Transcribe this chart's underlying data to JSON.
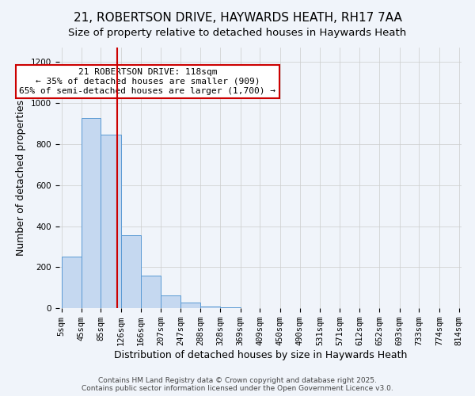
{
  "title_line1": "21, ROBERTSON DRIVE, HAYWARDS HEATH, RH17 7AA",
  "title_line2": "Size of property relative to detached houses in Haywards Heath",
  "xlabel": "Distribution of detached houses by size in Haywards Heath",
  "ylabel": "Number of detached properties",
  "bar_color": "#c5d8f0",
  "bar_edge_color": "#5a9ad4",
  "bin_edges": [
    5,
    45,
    85,
    126,
    166,
    207,
    247,
    288,
    328,
    369,
    409,
    450,
    490,
    531,
    571,
    612,
    652,
    693,
    733,
    774,
    814
  ],
  "bin_labels": [
    "5sqm",
    "45sqm",
    "85sqm",
    "126sqm",
    "166sqm",
    "207sqm",
    "247sqm",
    "288sqm",
    "328sqm",
    "369sqm",
    "409sqm",
    "450sqm",
    "490sqm",
    "531sqm",
    "571sqm",
    "612sqm",
    "652sqm",
    "693sqm",
    "733sqm",
    "774sqm",
    "814sqm"
  ],
  "bar_heights": [
    250,
    925,
    845,
    355,
    160,
    62,
    28,
    10,
    5,
    2,
    1,
    0,
    0,
    0,
    0,
    0,
    0,
    0,
    0,
    0
  ],
  "vline_x": 118,
  "vline_color": "#cc0000",
  "ylim": [
    0,
    1270
  ],
  "yticks": [
    0,
    200,
    400,
    600,
    800,
    1000,
    1200
  ],
  "annotation_title": "21 ROBERTSON DRIVE: 118sqm",
  "annotation_line1": "← 35% of detached houses are smaller (909)",
  "annotation_line2": "65% of semi-detached houses are larger (1,700) →",
  "annotation_box_color": "#ffffff",
  "annotation_box_edge": "#cc0000",
  "footer_line1": "Contains HM Land Registry data © Crown copyright and database right 2025.",
  "footer_line2": "Contains public sector information licensed under the Open Government Licence v3.0.",
  "background_color": "#f0f4fa",
  "grid_color": "#cccccc",
  "title_fontsize": 11,
  "subtitle_fontsize": 9.5,
  "axis_label_fontsize": 9,
  "tick_fontsize": 7.5,
  "footer_fontsize": 6.5
}
